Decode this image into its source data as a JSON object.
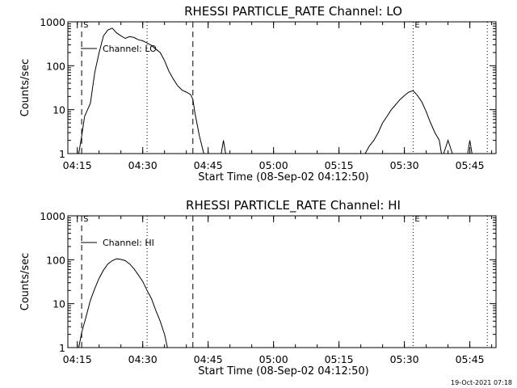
{
  "footer_timestamp": "19-Oct-2021 07:18",
  "chart_data": [
    {
      "type": "line",
      "title": "RHESSI PARTICLE_RATE Channel: LO",
      "xlabel": "Start Time (08-Sep-02 04:12:50)",
      "ylabel": "Counts/sec",
      "yscale": "log",
      "ylim": [
        1,
        1000
      ],
      "xlim": [
        "04:12:50",
        "05:51:00"
      ],
      "x_ticks": [
        "04:15",
        "04:30",
        "04:45",
        "05:00",
        "05:15",
        "05:30",
        "05:45"
      ],
      "y_ticks": [
        "1",
        "10",
        "100",
        "1000"
      ],
      "legend": "Channel: LO",
      "markers": [
        {
          "time": "04:16:00",
          "label": "S",
          "style": "dashed"
        },
        {
          "time": "04:31:00",
          "label": "",
          "style": "dotted"
        },
        {
          "time": "04:41:30",
          "label": "",
          "style": "dashed"
        },
        {
          "time": "05:32:00",
          "label": "E",
          "style": "dotted"
        },
        {
          "time": "05:49:00",
          "label": "",
          "style": "dotted"
        }
      ],
      "series": [
        {
          "segments": [
            [
              [
                "04:15:20",
                1
              ],
              [
                "04:16:00",
                2.5
              ],
              [
                "04:16:40",
                7
              ],
              [
                "04:18:00",
                14
              ],
              [
                "04:19:00",
                70
              ],
              [
                "04:20:00",
                200
              ],
              [
                "04:21:00",
                480
              ],
              [
                "04:22:00",
                650
              ],
              [
                "04:23:00",
                720
              ],
              [
                "04:24:00",
                560
              ],
              [
                "04:25:00",
                480
              ],
              [
                "04:26:00",
                420
              ],
              [
                "04:27:00",
                460
              ],
              [
                "04:28:00",
                440
              ],
              [
                "04:29:00",
                390
              ],
              [
                "04:30:00",
                370
              ],
              [
                "04:31:00",
                330
              ],
              [
                "04:32:00",
                290
              ],
              [
                "04:33:00",
                240
              ],
              [
                "04:34:00",
                200
              ],
              [
                "04:35:00",
                130
              ],
              [
                "04:36:00",
                75
              ],
              [
                "04:37:00",
                50
              ],
              [
                "04:38:00",
                35
              ],
              [
                "04:39:00",
                28
              ],
              [
                "04:40:00",
                25
              ],
              [
                "04:41:00",
                22
              ],
              [
                "04:41:30",
                17
              ],
              [
                "04:42:00",
                8
              ],
              [
                "04:43:00",
                2.5
              ],
              [
                "04:44:00",
                1
              ]
            ],
            [
              [
                "04:48:00",
                1
              ],
              [
                "04:48:30",
                2
              ],
              [
                "04:49:00",
                1
              ]
            ],
            [
              [
                "05:21:00",
                1
              ],
              [
                "05:22:00",
                1.5
              ],
              [
                "05:23:00",
                2
              ],
              [
                "05:24:00",
                3
              ],
              [
                "05:25:00",
                5
              ],
              [
                "05:26:00",
                7
              ],
              [
                "05:27:00",
                10
              ],
              [
                "05:28:00",
                13
              ],
              [
                "05:29:00",
                17
              ],
              [
                "05:30:00",
                21
              ],
              [
                "05:31:00",
                25
              ],
              [
                "05:32:00",
                27
              ],
              [
                "05:33:00",
                21
              ],
              [
                "05:34:00",
                15
              ],
              [
                "05:35:00",
                9
              ],
              [
                "05:36:00",
                5
              ],
              [
                "05:37:00",
                3
              ],
              [
                "05:38:00",
                2
              ],
              [
                "05:38:30",
                1
              ]
            ],
            [
              [
                "05:39:00",
                1
              ],
              [
                "05:40:00",
                2
              ],
              [
                "05:41:00",
                1
              ]
            ],
            [
              [
                "05:44:30",
                1
              ],
              [
                "05:45:00",
                2
              ],
              [
                "05:45:30",
                1
              ]
            ]
          ]
        }
      ]
    },
    {
      "type": "line",
      "title": "RHESSI PARTICLE_RATE Channel: HI",
      "xlabel": "Start Time (08-Sep-02 04:12:50)",
      "ylabel": "Counts/sec",
      "yscale": "log",
      "ylim": [
        1,
        1000
      ],
      "xlim": [
        "04:12:50",
        "05:51:00"
      ],
      "x_ticks": [
        "04:15",
        "04:30",
        "04:45",
        "05:00",
        "05:15",
        "05:30",
        "05:45"
      ],
      "y_ticks": [
        "1",
        "10",
        "100",
        "1000"
      ],
      "legend": "Channel: HI",
      "markers": [
        {
          "time": "04:16:00",
          "label": "S",
          "style": "dashed"
        },
        {
          "time": "04:31:00",
          "label": "",
          "style": "dotted"
        },
        {
          "time": "04:41:30",
          "label": "",
          "style": "dashed"
        },
        {
          "time": "05:32:00",
          "label": "E",
          "style": "dotted"
        },
        {
          "time": "05:49:00",
          "label": "",
          "style": "dotted"
        }
      ],
      "series": [
        {
          "segments": [
            [
              [
                "04:15:20",
                1
              ],
              [
                "04:16:00",
                2.2
              ],
              [
                "04:17:00",
                5
              ],
              [
                "04:18:00",
                12
              ],
              [
                "04:19:00",
                22
              ],
              [
                "04:20:00",
                38
              ],
              [
                "04:21:00",
                58
              ],
              [
                "04:22:00",
                80
              ],
              [
                "04:23:00",
                95
              ],
              [
                "04:24:00",
                105
              ],
              [
                "04:25:00",
                102
              ],
              [
                "04:26:00",
                95
              ],
              [
                "04:27:00",
                80
              ],
              [
                "04:28:00",
                62
              ],
              [
                "04:29:00",
                45
              ],
              [
                "04:30:00",
                32
              ],
              [
                "04:31:00",
                20
              ],
              [
                "04:32:00",
                13
              ],
              [
                "04:33:00",
                7
              ],
              [
                "04:34:00",
                4
              ],
              [
                "04:35:00",
                2
              ],
              [
                "04:35:40",
                1
              ]
            ]
          ]
        }
      ]
    }
  ]
}
